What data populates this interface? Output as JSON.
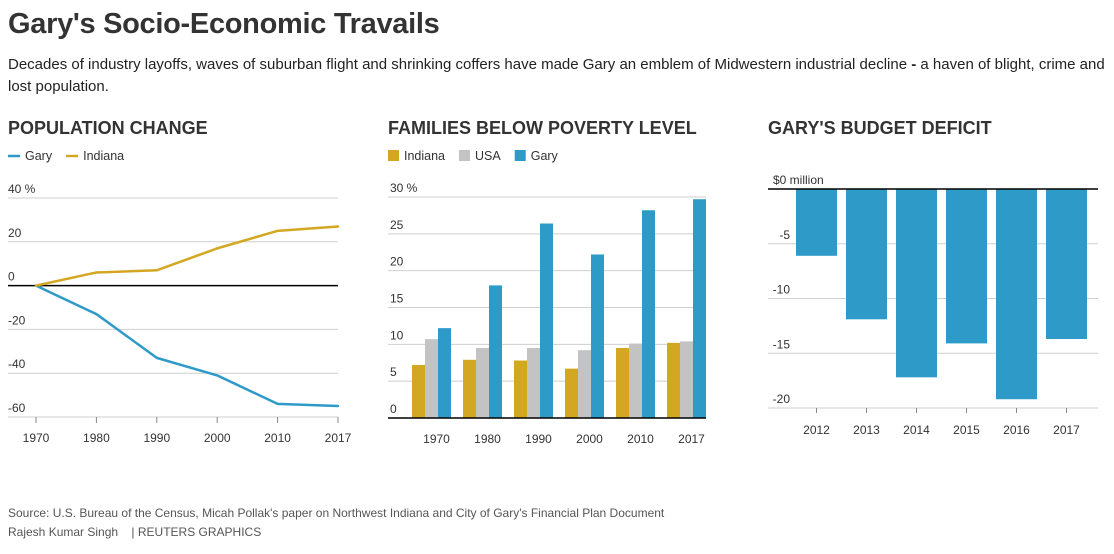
{
  "header": {
    "title": "Gary's Socio-Economic Travails",
    "subtitle_plain": "Decades of industry layoffs, waves of suburban flight and shrinking coffers have made Gary an emblem of Midwestern industrial decline ",
    "subtitle_bold": "-",
    "subtitle_rest": " a haven of blight, crime and lost population."
  },
  "footer": {
    "source": "Source: U.S. Bureau of the Census, Micah Pollak's paper on Northwest Indiana and City of Gary's Financial Plan Document",
    "author": "Rajesh Kumar Singh",
    "separator": "|",
    "agency": "REUTERS GRAPHICS"
  },
  "colors": {
    "gary": "#2e9ac8",
    "indiana": "#d4a722",
    "usa": "#c3c3c3",
    "axis": "#000000",
    "grid": "#cfcfcf"
  },
  "chart_data": [
    {
      "type": "line",
      "title": "POPULATION CHANGE",
      "x": [
        "1970",
        "1980",
        "1990",
        "2000",
        "2010",
        "2017"
      ],
      "series": [
        {
          "name": "Gary",
          "values": [
            0,
            -13,
            -33,
            -41,
            -54,
            -55
          ]
        },
        {
          "name": "Indiana",
          "values": [
            0,
            6,
            7,
            17,
            25,
            27
          ]
        }
      ],
      "ylim": [
        -60,
        40
      ],
      "yticks": [
        40,
        20,
        0,
        -20,
        -40,
        -60
      ],
      "ytick_labels": [
        "40 %",
        "20",
        "0",
        "-20",
        "-40",
        "-60"
      ],
      "grid": true
    },
    {
      "type": "bar",
      "title": "FAMILIES BELOW POVERTY LEVEL",
      "categories": [
        "1970",
        "1980",
        "1990",
        "2000",
        "2010",
        "2017"
      ],
      "series": [
        {
          "name": "Indiana",
          "values": [
            7.2,
            7.9,
            7.8,
            6.7,
            9.5,
            10.2
          ]
        },
        {
          "name": "USA",
          "values": [
            10.7,
            9.5,
            9.5,
            9.2,
            10.1,
            10.4
          ]
        },
        {
          "name": "Gary",
          "values": [
            12.2,
            18.0,
            26.4,
            22.2,
            28.2,
            29.7
          ]
        }
      ],
      "ylim": [
        0,
        30
      ],
      "yticks": [
        30,
        25,
        20,
        15,
        10,
        5,
        0
      ],
      "ytick_labels": [
        "30 %",
        "25",
        "20",
        "15",
        "10",
        "5",
        "0"
      ],
      "grid": true
    },
    {
      "type": "bar",
      "title": "GARY'S BUDGET DEFICIT",
      "categories": [
        "2012",
        "2013",
        "2014",
        "2015",
        "2016",
        "2017"
      ],
      "values": [
        -6.1,
        -11.9,
        -17.2,
        -14.1,
        -19.2,
        -13.7
      ],
      "ylim": [
        -20,
        0
      ],
      "yticks": [
        0,
        -5,
        -10,
        -15,
        -20
      ],
      "ytick_labels": [
        "$0 million",
        "-5",
        "-10",
        "-15",
        "-20"
      ],
      "grid": true
    }
  ]
}
